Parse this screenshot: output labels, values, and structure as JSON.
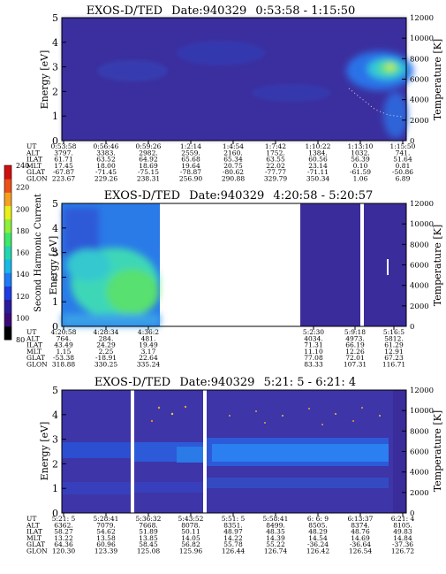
{
  "chart_data": [
    {
      "type": "heatmap",
      "title": "EXOS-D/TED",
      "date": "Date:940329",
      "time_range": "0:53:58 - 1:15:50",
      "ylabel": "Energy [eV]",
      "ylabel_right": "Temperature [K]",
      "ylim": [
        0,
        5
      ],
      "ylim_right": [
        0,
        12000
      ],
      "yticks": [
        "0",
        "1",
        "2",
        "3",
        "4",
        "5"
      ],
      "yticks_right": [
        "0",
        "2000",
        "4000",
        "6000",
        "8000",
        "10000",
        "12000"
      ],
      "row_labels": [
        "UT",
        "ALT",
        "ILAT",
        "MLT",
        "GLAT",
        "GLON"
      ],
      "columns": [
        [
          "0:53:58",
          "3797.",
          "61.71",
          "17.45",
          "-67.87",
          "223.67"
        ],
        [
          "0:56:46",
          "3383.",
          "63.52",
          "18.00",
          "-71.45",
          "229.26"
        ],
        [
          "0:59:26",
          "2982.",
          "64.92",
          "18.69",
          "-75.15",
          "238.31"
        ],
        [
          "1:2:14",
          "2559.",
          "65.68",
          "19.64",
          "-78.87",
          "256.90"
        ],
        [
          "1:4:54",
          "2160.",
          "65.34",
          "20.75",
          "-80.62",
          "290.88"
        ],
        [
          "1:7:42",
          "1752.",
          "63.55",
          "22.02",
          "-77.77",
          "329.79"
        ],
        [
          "1:10:22",
          "1384.",
          "60.56",
          "23.14",
          "-71.11",
          "350.34"
        ],
        [
          "1:13:10",
          "1032.",
          "56.39",
          "0.10",
          "-61.59",
          "1.06"
        ],
        [
          "1:15:50",
          "741.",
          "51.64",
          "0.81",
          "-50.86",
          "6.89"
        ]
      ]
    },
    {
      "type": "heatmap",
      "title": "EXOS-D/TED",
      "date": "Date:940329",
      "time_range": "4:20:58 - 5:20:57",
      "ylabel": "Energy [eV]",
      "ylabel_right": "Temperature [K]",
      "ylim": [
        0,
        5
      ],
      "ylim_right": [
        0,
        12000
      ],
      "yticks": [
        "0",
        "1",
        "2",
        "3",
        "4",
        "5"
      ],
      "yticks_right": [
        "0",
        "2000",
        "4000",
        "6000",
        "8000",
        "10000",
        "12000"
      ],
      "row_labels": [
        "UT",
        "ALT",
        "ILAT",
        "MLT",
        "GLAT",
        "GLON"
      ],
      "columns": [
        [
          "4:20:58",
          "764.",
          "43.49",
          "1.15",
          "-53.38",
          "318.88"
        ],
        [
          "4:28:34",
          "284.",
          "24.29",
          "2.25",
          "-18.91",
          "330.25"
        ],
        [
          "4:36:2",
          "481.",
          "19.49",
          "3.17",
          "22.64",
          "335.24"
        ],
        [
          "5:2:30",
          "4034.",
          "71.31",
          "11.10",
          "77.08",
          "83.33"
        ],
        [
          "5:9:18",
          "4973.",
          "66.19",
          "12.26",
          "72.01",
          "107.31"
        ],
        [
          "5:16:5",
          "5812.",
          "61.29",
          "12.91",
          "67.23",
          "116.71"
        ]
      ]
    },
    {
      "type": "heatmap",
      "title": "EXOS-D/TED",
      "date": "Date:940329",
      "time_range": "5:21: 5 - 6:21: 4",
      "ylabel": "Energy [eV]",
      "ylabel_right": "Temperature [K]",
      "ylim": [
        0,
        5
      ],
      "ylim_right": [
        0,
        12000
      ],
      "yticks": [
        "0",
        "1",
        "2",
        "3",
        "4",
        "5"
      ],
      "yticks_right": [
        "0",
        "2000",
        "4000",
        "6000",
        "8000",
        "10000",
        "12000"
      ],
      "row_labels": [
        "UT",
        "ALT",
        "ILAT",
        "MLT",
        "GLAT",
        "GLON"
      ],
      "columns": [
        [
          "5:21: 5",
          "6362.",
          "58.27",
          "13.22",
          "64.36",
          "120.30"
        ],
        [
          "5:28:41",
          "7079.",
          "54.62",
          "13.58",
          "60.96",
          "123.39"
        ],
        [
          "5:36:32",
          "7668.",
          "51.89",
          "13.85",
          "58.45",
          "125.08"
        ],
        [
          "5:43:52",
          "8078.",
          "50.11",
          "14.05",
          "56.82",
          "125.96"
        ],
        [
          "5:51: 5",
          "8351.",
          "48.97",
          "14.22",
          "55.78",
          "126.44"
        ],
        [
          "5:58:41",
          "8499.",
          "48.35",
          "14.39",
          "55.22",
          "126.74"
        ],
        [
          "6: 6: 9",
          "8505.",
          "48.29",
          "14.54",
          "-36.24",
          "126.42"
        ],
        [
          "6:13:37",
          "8374.",
          "48.76",
          "14.69",
          "-36.64",
          "126.54"
        ],
        [
          "6:21: 4",
          "8105.",
          "49.83",
          "14.84",
          "-37.36",
          "126.72"
        ]
      ]
    }
  ],
  "colorbar": {
    "label": "Second Harmonic Current",
    "ticks": [
      "80",
      "100",
      "120",
      "140",
      "160",
      "180",
      "200",
      "220",
      "240"
    ],
    "range": [
      80,
      240
    ],
    "colors": [
      "#000000",
      "#3c0a78",
      "#2a1a9c",
      "#1f3be0",
      "#1d7bf5",
      "#18b8e8",
      "#22d6b0",
      "#3ee86a",
      "#8ef03a",
      "#e8f018",
      "#f5a020",
      "#ec5018",
      "#d01010"
    ]
  },
  "colors": {
    "background_low": "#3a2a9e",
    "band_blue": "#2f6ae8",
    "band_cyan": "#4cd6c8",
    "band_green": "#5ce080",
    "band_yellow": "#f0f040"
  }
}
